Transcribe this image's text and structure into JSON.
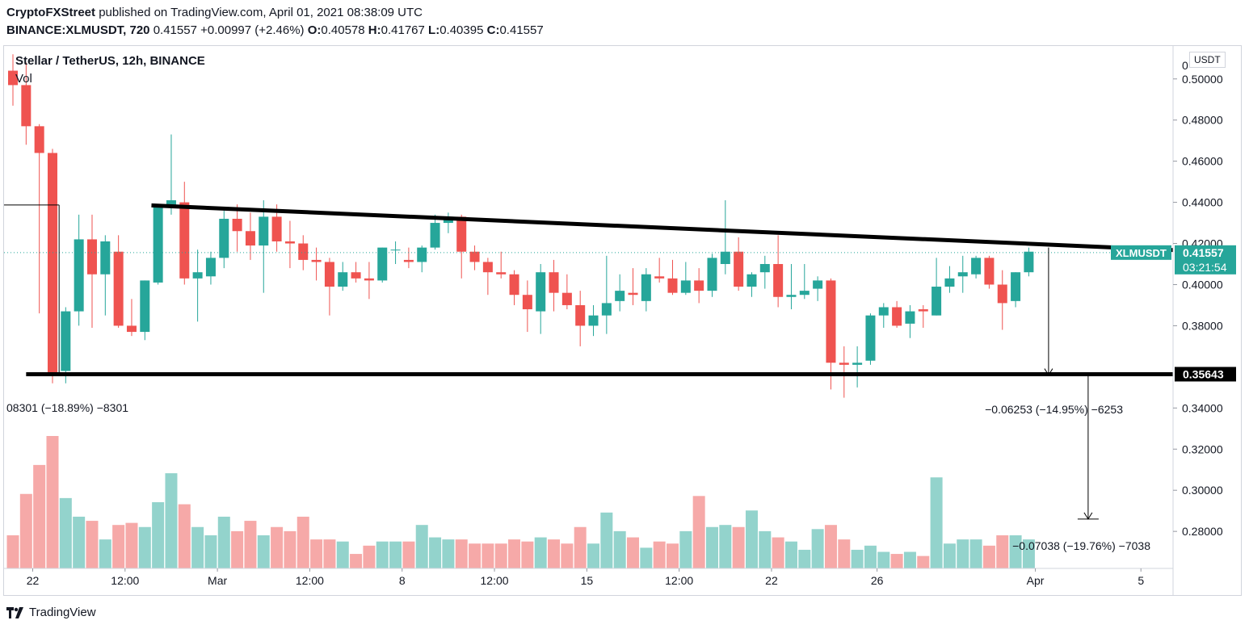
{
  "header": {
    "publisher": "CryptoFXStreet",
    "published_text": "published on TradingView.com, April 01, 2021 08:38:09 UTC",
    "symbol_line": {
      "symbol": "BINANCE:XLMUSDT, 720",
      "last": "0.41557",
      "change": "+0.00997 (+2.46%)",
      "o_label": "O:",
      "o": "0.40578",
      "h_label": "H:",
      "h": "0.41767",
      "l_label": "L:",
      "l": "0.40395",
      "c_label": "C:",
      "c": "0.41557"
    }
  },
  "legend": {
    "title": "Stellar / TetherUS, 12h, BINANCE",
    "vol": "Vol"
  },
  "branding": {
    "logo_text": "TradingView",
    "logo_icon": "tradingview-logo-icon"
  },
  "colors": {
    "up": "#26a69a",
    "down": "#ef5350",
    "up_vol": "#93d3cc",
    "down_vol": "#f6a9a8",
    "trendline": "#000000",
    "axis_text": "#131722"
  },
  "chart_data": {
    "type": "candlestick",
    "symbol": "XLMUSDT",
    "interval": "12h",
    "y_unit": "USDT",
    "ylim": [
      0.262,
      0.516
    ],
    "y_ticks": [
      {
        "value": 0.5,
        "label": "0.50000"
      },
      {
        "value": 0.48,
        "label": "0.48000"
      },
      {
        "value": 0.46,
        "label": "0.46000"
      },
      {
        "value": 0.44,
        "label": "0.44000"
      },
      {
        "value": 0.42,
        "label": "0.42000"
      },
      {
        "value": 0.4,
        "label": "0.40000"
      },
      {
        "value": 0.38,
        "label": "0.38000"
      },
      {
        "value": 0.34,
        "label": "0.34000"
      },
      {
        "value": 0.32,
        "label": "0.32000"
      },
      {
        "value": 0.3,
        "label": "0.30000"
      },
      {
        "value": 0.28,
        "label": "0.28000"
      }
    ],
    "x_ticks": [
      {
        "index": 1.5,
        "label": "22"
      },
      {
        "index": 8.5,
        "label": "12:00"
      },
      {
        "index": 15.5,
        "label": "Mar"
      },
      {
        "index": 22.5,
        "label": "12:00"
      },
      {
        "index": 29.5,
        "label": "8"
      },
      {
        "index": 36.5,
        "label": "12:00"
      },
      {
        "index": 43.5,
        "label": "15"
      },
      {
        "index": 50.5,
        "label": "12:00"
      },
      {
        "index": 57.5,
        "label": "22"
      },
      {
        "index": 65.5,
        "label": "26"
      },
      {
        "index": 77.5,
        "label": "Apr"
      },
      {
        "index": 85.5,
        "label": "5"
      }
    ],
    "candles": [
      [
        0.504,
        0.512,
        0.487,
        0.497
      ],
      [
        0.497,
        0.508,
        0.468,
        0.477
      ],
      [
        0.477,
        0.478,
        0.386,
        0.464
      ],
      [
        0.464,
        0.466,
        0.352,
        0.357
      ],
      [
        0.358,
        0.389,
        0.352,
        0.387
      ],
      [
        0.387,
        0.434,
        0.38,
        0.422
      ],
      [
        0.422,
        0.434,
        0.379,
        0.405
      ],
      [
        0.405,
        0.424,
        0.385,
        0.421
      ],
      [
        0.416,
        0.424,
        0.379,
        0.38
      ],
      [
        0.38,
        0.393,
        0.375,
        0.377
      ],
      [
        0.377,
        0.402,
        0.373,
        0.402
      ],
      [
        0.401,
        0.438,
        0.4,
        0.438
      ],
      [
        0.438,
        0.473,
        0.434,
        0.441
      ],
      [
        0.44,
        0.45,
        0.4,
        0.403
      ],
      [
        0.403,
        0.417,
        0.382,
        0.406
      ],
      [
        0.404,
        0.416,
        0.4,
        0.413
      ],
      [
        0.413,
        0.436,
        0.408,
        0.432
      ],
      [
        0.432,
        0.439,
        0.416,
        0.426
      ],
      [
        0.426,
        0.435,
        0.412,
        0.419
      ],
      [
        0.419,
        0.441,
        0.396,
        0.433
      ],
      [
        0.433,
        0.439,
        0.416,
        0.421
      ],
      [
        0.421,
        0.431,
        0.408,
        0.42
      ],
      [
        0.42,
        0.424,
        0.407,
        0.412
      ],
      [
        0.412,
        0.418,
        0.402,
        0.411
      ],
      [
        0.411,
        0.413,
        0.385,
        0.399
      ],
      [
        0.399,
        0.411,
        0.397,
        0.406
      ],
      [
        0.406,
        0.411,
        0.401,
        0.403
      ],
      [
        0.403,
        0.411,
        0.393,
        0.402
      ],
      [
        0.402,
        0.418,
        0.401,
        0.418
      ],
      [
        0.417,
        0.421,
        0.41,
        0.417
      ],
      [
        0.412,
        0.418,
        0.408,
        0.411
      ],
      [
        0.411,
        0.419,
        0.406,
        0.418
      ],
      [
        0.418,
        0.434,
        0.417,
        0.43
      ],
      [
        0.43,
        0.435,
        0.425,
        0.433
      ],
      [
        0.433,
        0.434,
        0.403,
        0.416
      ],
      [
        0.416,
        0.419,
        0.407,
        0.411
      ],
      [
        0.411,
        0.413,
        0.395,
        0.406
      ],
      [
        0.406,
        0.416,
        0.403,
        0.405
      ],
      [
        0.405,
        0.407,
        0.39,
        0.395
      ],
      [
        0.395,
        0.402,
        0.377,
        0.388
      ],
      [
        0.387,
        0.41,
        0.376,
        0.406
      ],
      [
        0.406,
        0.412,
        0.387,
        0.396
      ],
      [
        0.396,
        0.405,
        0.388,
        0.39
      ],
      [
        0.39,
        0.397,
        0.37,
        0.38
      ],
      [
        0.38,
        0.39,
        0.375,
        0.385
      ],
      [
        0.385,
        0.414,
        0.376,
        0.391
      ],
      [
        0.392,
        0.405,
        0.387,
        0.397
      ],
      [
        0.396,
        0.408,
        0.39,
        0.395
      ],
      [
        0.392,
        0.408,
        0.387,
        0.405
      ],
      [
        0.404,
        0.413,
        0.401,
        0.403
      ],
      [
        0.403,
        0.412,
        0.395,
        0.396
      ],
      [
        0.396,
        0.411,
        0.395,
        0.402
      ],
      [
        0.402,
        0.408,
        0.391,
        0.397
      ],
      [
        0.397,
        0.415,
        0.394,
        0.413
      ],
      [
        0.41,
        0.441,
        0.405,
        0.416
      ],
      [
        0.416,
        0.423,
        0.397,
        0.399
      ],
      [
        0.399,
        0.406,
        0.394,
        0.405
      ],
      [
        0.406,
        0.414,
        0.398,
        0.41
      ],
      [
        0.41,
        0.424,
        0.389,
        0.394
      ],
      [
        0.394,
        0.41,
        0.388,
        0.395
      ],
      [
        0.395,
        0.41,
        0.393,
        0.397
      ],
      [
        0.398,
        0.404,
        0.392,
        0.402
      ],
      [
        0.402,
        0.403,
        0.349,
        0.362
      ],
      [
        0.362,
        0.37,
        0.345,
        0.361
      ],
      [
        0.361,
        0.37,
        0.35,
        0.362
      ],
      [
        0.363,
        0.386,
        0.361,
        0.385
      ],
      [
        0.385,
        0.391,
        0.379,
        0.389
      ],
      [
        0.389,
        0.392,
        0.379,
        0.38
      ],
      [
        0.381,
        0.39,
        0.374,
        0.387
      ],
      [
        0.388,
        0.39,
        0.379,
        0.387
      ],
      [
        0.385,
        0.413,
        0.385,
        0.399
      ],
      [
        0.399,
        0.409,
        0.396,
        0.403
      ],
      [
        0.404,
        0.414,
        0.396,
        0.406
      ],
      [
        0.405,
        0.414,
        0.403,
        0.413
      ],
      [
        0.413,
        0.414,
        0.398,
        0.4
      ],
      [
        0.4,
        0.407,
        0.378,
        0.391
      ],
      [
        0.392,
        0.406,
        0.389,
        0.406
      ],
      [
        0.406,
        0.418,
        0.404,
        0.416
      ]
    ],
    "volume": {
      "min": 0.268,
      "max": 0.332,
      "values": [
        0.284,
        0.304,
        0.318,
        0.332,
        0.302,
        0.293,
        0.291,
        0.282,
        0.289,
        0.29,
        0.288,
        0.3,
        0.314,
        0.299,
        0.288,
        0.284,
        0.293,
        0.286,
        0.291,
        0.284,
        0.288,
        0.286,
        0.293,
        0.282,
        0.282,
        0.281,
        0.275,
        0.279,
        0.281,
        0.281,
        0.281,
        0.289,
        0.283,
        0.282,
        0.282,
        0.28,
        0.28,
        0.28,
        0.282,
        0.281,
        0.283,
        0.282,
        0.28,
        0.288,
        0.28,
        0.295,
        0.286,
        0.283,
        0.278,
        0.281,
        0.28,
        0.286,
        0.303,
        0.288,
        0.289,
        0.288,
        0.296,
        0.286,
        0.283,
        0.281,
        0.277,
        0.287,
        0.289,
        0.282,
        0.277,
        0.279,
        0.276,
        0.275,
        0.276,
        0.274,
        0.312,
        0.28,
        0.282,
        0.282,
        0.279,
        0.284,
        0.284,
        0.282
      ]
    },
    "trendlines": [
      {
        "name": "descending-resistance",
        "from": {
          "index": 10.5,
          "value": 0.4385
        },
        "to": {
          "index": 93,
          "value": 0.4168
        }
      },
      {
        "name": "horizontal-support",
        "from": {
          "index": 1,
          "value": 0.35643
        },
        "to": {
          "index": 90.5,
          "value": 0.35643
        }
      }
    ],
    "measurements": [
      {
        "name": "measure-left",
        "label": "08301 (−18.89%) −8301",
        "from": {
          "index": 0,
          "value": 0.4387
        },
        "to": {
          "index": 3.5,
          "value": 0.357
        }
      },
      {
        "name": "measure-right",
        "label": "−0.06253 (−14.95%) −6253",
        "from": {
          "index": 78.5,
          "value": 0.418
        },
        "to": {
          "index": 78.5,
          "value": 0.356
        }
      },
      {
        "name": "measure-target",
        "label": "−0.07038 (−19.76%) −7038",
        "from": {
          "index": 81.5,
          "value": 0.356
        },
        "to": {
          "index": 81.5,
          "value": 0.286
        }
      }
    ],
    "price_markers": [
      {
        "name": "last-price",
        "label": "XLMUSDT · 0.41557",
        "countdown": "03:21:54",
        "value": 0.41557
      },
      {
        "name": "support-level",
        "label": "0.35643",
        "value": 0.35643
      }
    ],
    "axis_clipped_label": "0"
  }
}
